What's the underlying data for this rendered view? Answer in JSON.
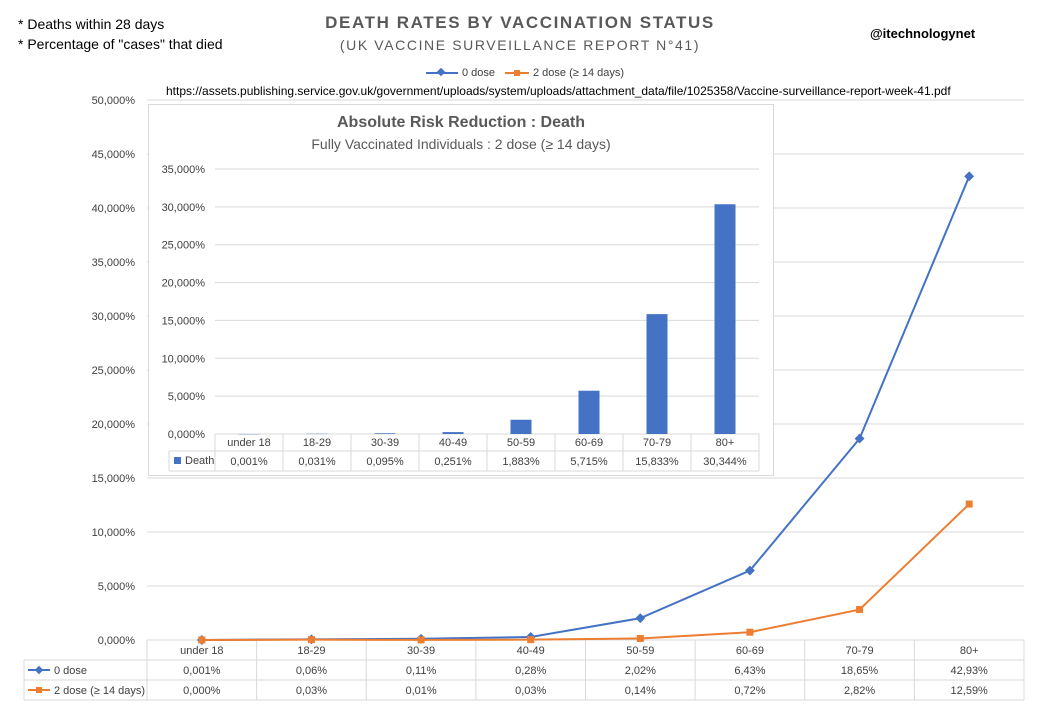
{
  "notes": [
    "* Deaths within 28 days",
    "* Percentage of \"cases\" that died"
  ],
  "title": "DEATH RATES BY VACCINATION STATUS",
  "subtitle": "(UK VACCINE SURVEILLANCE REPORT N°41)",
  "handle": "@itechnologynet",
  "source_url": "https://assets.publishing.service.gov.uk/government/uploads/system/uploads/attachment_data/file/1025358/Vaccine-surveillance-report-week-41.pdf",
  "colors": {
    "series0": "#4472c4",
    "series1": "#ed7d31",
    "bar": "#4472c4",
    "grid": "#d9d9d9"
  },
  "chart_data": [
    {
      "type": "line",
      "title": "DEATH RATES BY VACCINATION STATUS",
      "ylim": [
        0,
        50
      ],
      "y_ticks": [
        "0,000%",
        "5,000%",
        "10,000%",
        "15,000%",
        "20,000%",
        "25,000%",
        "30,000%",
        "35,000%",
        "40,000%",
        "45,000%",
        "50,000%"
      ],
      "categories": [
        "under 18",
        "18-29",
        "30-39",
        "40-49",
        "50-59",
        "60-69",
        "70-79",
        "80+"
      ],
      "series": [
        {
          "name": "0 dose",
          "values": [
            0.001,
            0.06,
            0.11,
            0.28,
            2.02,
            6.43,
            18.65,
            42.93
          ],
          "labels": [
            "0,001%",
            "0,06%",
            "0,11%",
            "0,28%",
            "2,02%",
            "6,43%",
            "18,65%",
            "42,93%"
          ]
        },
        {
          "name": "2 dose (≥ 14 days)",
          "values": [
            0.0,
            0.03,
            0.01,
            0.03,
            0.14,
            0.72,
            2.82,
            12.59
          ],
          "labels": [
            "0,000%",
            "0,03%",
            "0,01%",
            "0,03%",
            "0,14%",
            "0,72%",
            "2,82%",
            "12,59%"
          ]
        }
      ],
      "legend": "top-center"
    },
    {
      "type": "bar",
      "title": "Absolute Risk Reduction : Death",
      "subtitle": "Fully Vaccinated Individuals : 2 dose (≥ 14 days)",
      "ylim": [
        0,
        35
      ],
      "y_ticks": [
        "0,000%",
        "5,000%",
        "10,000%",
        "15,000%",
        "20,000%",
        "25,000%",
        "30,000%",
        "35,000%"
      ],
      "categories": [
        "under 18",
        "18-29",
        "30-39",
        "40-49",
        "50-59",
        "60-69",
        "70-79",
        "80+"
      ],
      "series": [
        {
          "name": "Death",
          "values": [
            0.001,
            0.031,
            0.095,
            0.251,
            1.883,
            5.715,
            15.833,
            30.344
          ],
          "labels": [
            "0,001%",
            "0,031%",
            "0,095%",
            "0,251%",
            "1,883%",
            "5,715%",
            "15,833%",
            "30,344%"
          ]
        }
      ]
    }
  ]
}
